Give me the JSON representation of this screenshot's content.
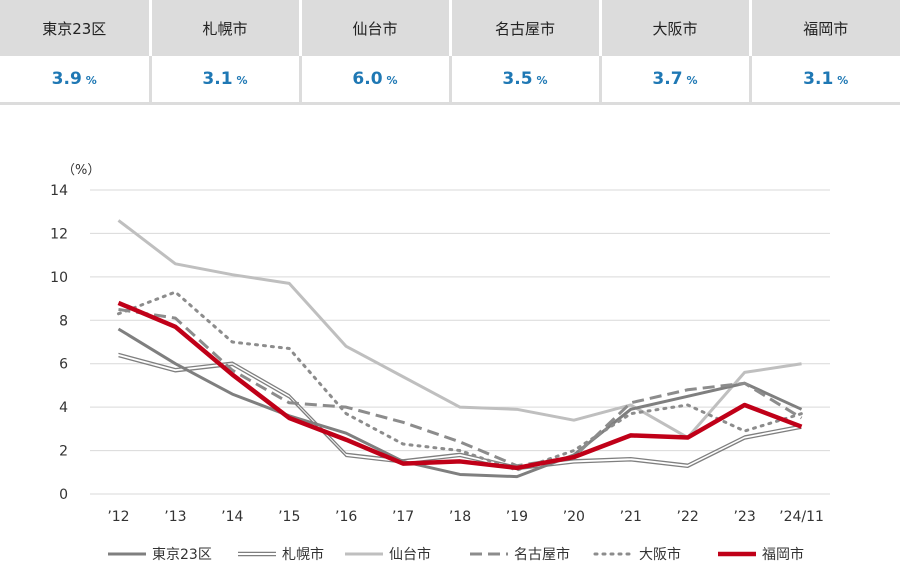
{
  "summary": {
    "columns": [
      {
        "city": "東京23区",
        "value": "3.9",
        "unit": "%"
      },
      {
        "city": "札幌市",
        "value": "3.1",
        "unit": "%"
      },
      {
        "city": "仙台市",
        "value": "6.0",
        "unit": "%"
      },
      {
        "city": "名古屋市",
        "value": "3.5",
        "unit": "%"
      },
      {
        "city": "大阪市",
        "value": "3.7",
        "unit": "%"
      },
      {
        "city": "福岡市",
        "value": "3.1",
        "unit": "%"
      }
    ]
  },
  "chart_data": {
    "type": "line",
    "unit_label": "（%）",
    "categories": [
      "’12",
      "’13",
      "’14",
      "’15",
      "’16",
      "’17",
      "’18",
      "’19",
      "’20",
      "’21",
      "’22",
      "’23",
      "’24/11"
    ],
    "ylim": [
      0,
      14
    ],
    "yticks": [
      0,
      2,
      4,
      6,
      8,
      10,
      12,
      14
    ],
    "grid": true,
    "legend_position": "bottom",
    "series": [
      {
        "name": "東京23区",
        "color": "#7f7f7f",
        "style": "solid",
        "values": [
          7.6,
          6.0,
          4.6,
          3.6,
          2.8,
          1.5,
          0.9,
          0.8,
          1.8,
          3.9,
          4.5,
          5.1,
          3.9
        ]
      },
      {
        "name": "札幌市",
        "color": "#7f7f7f",
        "style": "double",
        "values": [
          6.4,
          5.7,
          6.0,
          4.5,
          1.8,
          1.5,
          1.8,
          1.2,
          1.5,
          1.6,
          1.3,
          2.6,
          3.1
        ]
      },
      {
        "name": "仙台市",
        "color": "#bfbfbf",
        "style": "solid",
        "values": [
          12.6,
          10.6,
          10.1,
          9.7,
          6.8,
          5.4,
          4.0,
          3.9,
          3.4,
          4.1,
          2.6,
          5.6,
          6.0
        ]
      },
      {
        "name": "名古屋市",
        "color": "#8c8c8c",
        "style": "dashed",
        "values": [
          8.5,
          8.1,
          5.7,
          4.2,
          4.0,
          3.3,
          2.4,
          1.3,
          1.7,
          4.2,
          4.8,
          5.1,
          3.5
        ]
      },
      {
        "name": "大阪市",
        "color": "#8c8c8c",
        "style": "dotted",
        "values": [
          8.3,
          9.3,
          7.0,
          6.7,
          3.7,
          2.3,
          2.0,
          1.1,
          2.0,
          3.7,
          4.1,
          2.9,
          3.7
        ]
      },
      {
        "name": "福岡市",
        "color": "#c00018",
        "style": "thick",
        "values": [
          8.8,
          7.7,
          5.5,
          3.5,
          2.5,
          1.4,
          1.5,
          1.2,
          1.7,
          2.7,
          2.6,
          4.1,
          3.1
        ]
      }
    ]
  }
}
